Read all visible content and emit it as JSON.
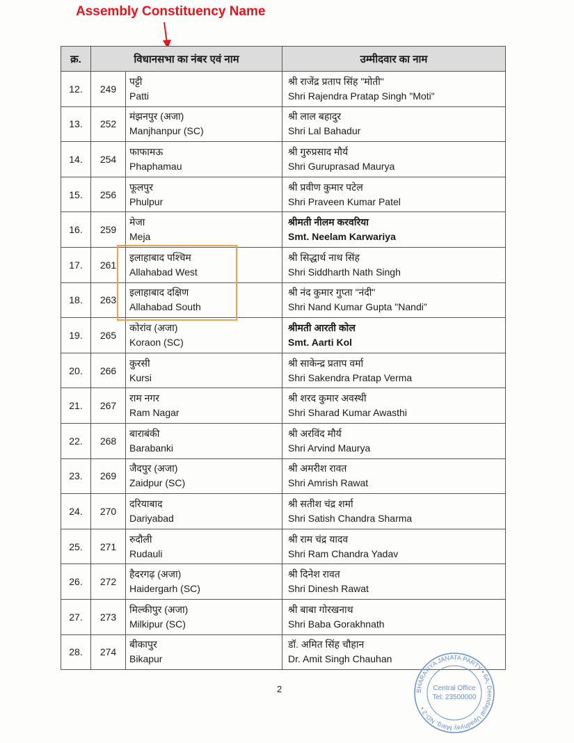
{
  "annotation": {
    "label": "Assembly Constituency Name",
    "color": "#e8141c"
  },
  "table": {
    "headers": {
      "serial": "क्र.",
      "constituency": "विधानसभा का नंबर एवं नाम",
      "candidate": "उम्मीदवार का नाम"
    },
    "rows": [
      {
        "serial": "12.",
        "number": "249",
        "name_hi": "पट्टी",
        "name_en": "Patti",
        "cand_hi": "श्री राजेंद्र प्रताप सिंह \"मोती\"",
        "cand_en": "Shri Rajendra Pratap Singh \"Moti\"",
        "bold": false
      },
      {
        "serial": "13.",
        "number": "252",
        "name_hi": "मंझनपुर (अजा)",
        "name_en": "Manjhanpur (SC)",
        "cand_hi": "श्री लाल बहादुर",
        "cand_en": "Shri Lal Bahadur",
        "bold": false
      },
      {
        "serial": "14.",
        "number": "254",
        "name_hi": "फाफामऊ",
        "name_en": "Phaphamau",
        "cand_hi": "श्री गुरुप्रसाद मौर्य",
        "cand_en": "Shri Guruprasad Maurya",
        "bold": false
      },
      {
        "serial": "15.",
        "number": "256",
        "name_hi": "फूलपुर",
        "name_en": "Phulpur",
        "cand_hi": "श्री प्रवीण कुमार पटेल",
        "cand_en": "Shri Praveen Kumar Patel",
        "bold": false
      },
      {
        "serial": "16.",
        "number": "259",
        "name_hi": "मेजा",
        "name_en": "Meja",
        "cand_hi": "श्रीमती नीलम करवरिया",
        "cand_en": "Smt. Neelam Karwariya",
        "bold": true
      },
      {
        "serial": "17.",
        "number": "261",
        "name_hi": "इलाहाबाद पश्चिम",
        "name_en": "Allahabad West",
        "cand_hi": "श्री सिद्धार्थ नाथ सिंह",
        "cand_en": "Shri Siddharth Nath Singh",
        "bold": false
      },
      {
        "serial": "18.",
        "number": "263",
        "name_hi": "इलाहाबाद दक्षिण",
        "name_en": "Allahabad South",
        "cand_hi": "श्री नंद कुमार गुप्ता \"नंदी\"",
        "cand_en": "Shri Nand Kumar Gupta \"Nandi\"",
        "bold": false
      },
      {
        "serial": "19.",
        "number": "265",
        "name_hi": "कोरांव (अजा)",
        "name_en": "Koraon (SC)",
        "cand_hi": "श्रीमती आरती कोल",
        "cand_en": "Smt. Aarti Kol",
        "bold": true
      },
      {
        "serial": "20.",
        "number": "266",
        "name_hi": "कुरसी",
        "name_en": "Kursi",
        "cand_hi": "श्री साकेन्द्र प्रताप वर्मा",
        "cand_en": "Shri Sakendra Pratap Verma",
        "bold": false
      },
      {
        "serial": "21.",
        "number": "267",
        "name_hi": "राम नगर",
        "name_en": "Ram Nagar",
        "cand_hi": "श्री शरद कुमार अवस्थी",
        "cand_en": "Shri Sharad Kumar Awasthi",
        "bold": false
      },
      {
        "serial": "22.",
        "number": "268",
        "name_hi": "बाराबंकी",
        "name_en": "Barabanki",
        "cand_hi": "श्री अरविंद मौर्य",
        "cand_en": "Shri Arvind Maurya",
        "bold": false
      },
      {
        "serial": "23.",
        "number": "269",
        "name_hi": "जैदपुर (अजा)",
        "name_en": "Zaidpur (SC)",
        "cand_hi": "श्री अमरीश रावत",
        "cand_en": "Shri Amrish Rawat",
        "bold": false
      },
      {
        "serial": "24.",
        "number": "270",
        "name_hi": "दरियाबाद",
        "name_en": "Dariyabad",
        "cand_hi": "श्री सतीश चंद्र शर्मा",
        "cand_en": "Shri Satish Chandra Sharma",
        "bold": false
      },
      {
        "serial": "25.",
        "number": "271",
        "name_hi": "रुदौली",
        "name_en": "Rudauli",
        "cand_hi": "श्री राम चंद्र यादव",
        "cand_en": "Shri Ram Chandra Yadav",
        "bold": false
      },
      {
        "serial": "26.",
        "number": "272",
        "name_hi": "हैदरगढ़ (अजा)",
        "name_en": "Haidergarh (SC)",
        "cand_hi": "श्री दिनेश रावत",
        "cand_en": "Shri Dinesh Rawat",
        "bold": false
      },
      {
        "serial": "27.",
        "number": "273",
        "name_hi": "मिल्कीपुर (अजा)",
        "name_en": "Milkipur (SC)",
        "cand_hi": "श्री बाबा गोरखनाथ",
        "cand_en": "Shri Baba Gorakhnath",
        "bold": false
      },
      {
        "serial": "28.",
        "number": "274",
        "name_hi": "बीकापुर",
        "name_en": "Bikapur",
        "cand_hi": "डॉ. अमित सिंह चौहान",
        "cand_en": "Dr. Amit Singh Chauhan",
        "bold": false
      }
    ]
  },
  "highlight_color": "#f0a050",
  "page_number": "2",
  "stamp": {
    "outer": "BHARATIYA JANATA PARTY • 6A, Deendayal Upadhyay Marg, ND-2 •",
    "line1": "Central Office",
    "line2": "Tel: 23500000",
    "color": "#6a8fc8"
  }
}
